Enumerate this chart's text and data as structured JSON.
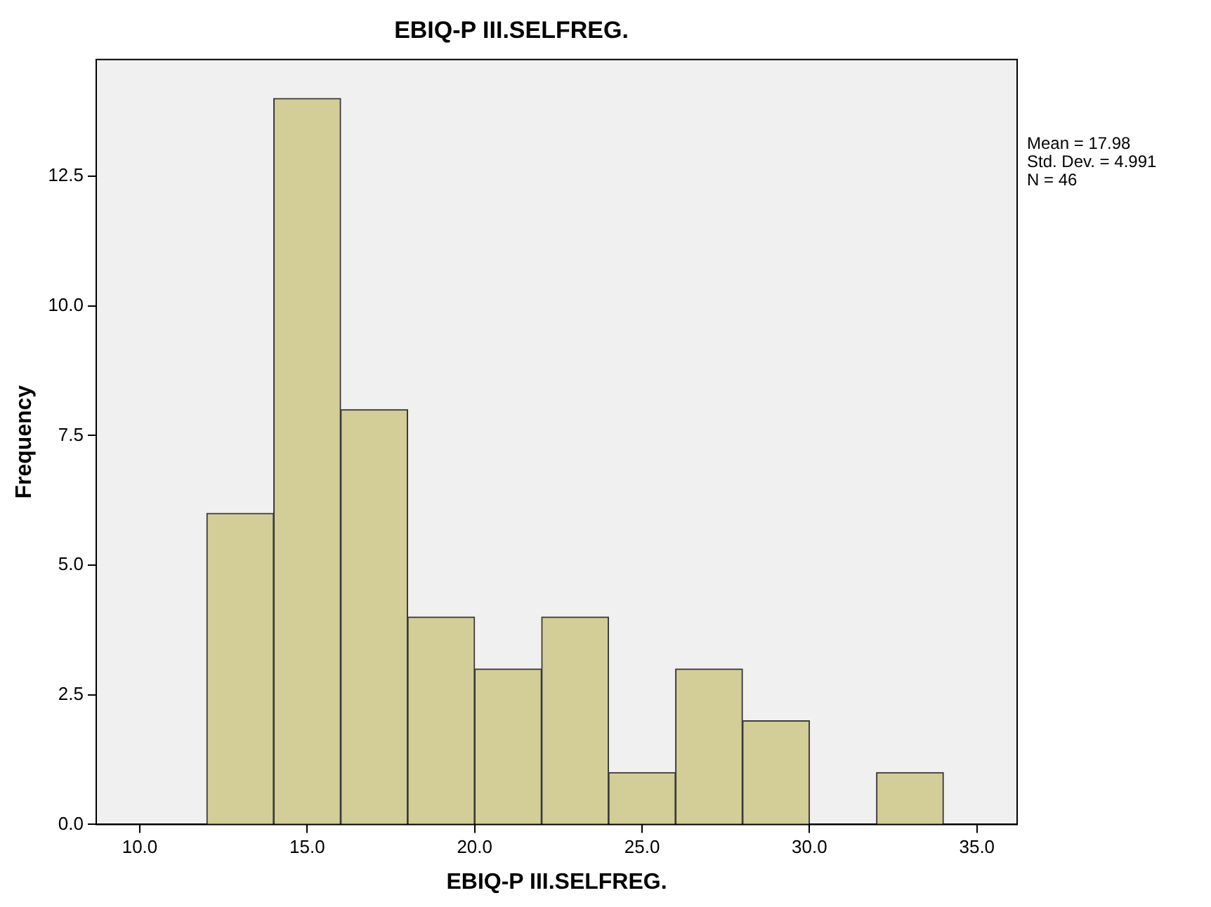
{
  "chart_data": {
    "type": "histogram",
    "title": "EBIQ-P III.SELFREG.",
    "xlabel": "EBIQ-P III.SELFREG.",
    "ylabel": "Frequency",
    "bins": [
      12,
      14,
      16,
      18,
      20,
      22,
      24,
      26,
      28,
      30,
      32,
      34
    ],
    "values": [
      6,
      14,
      8,
      4,
      3,
      4,
      1,
      3,
      2,
      0,
      1
    ],
    "color": "#d3ce97",
    "xlim": [
      8.7,
      36.2
    ],
    "xticks": [
      {
        "value": 10,
        "label": "10.0"
      },
      {
        "value": 15,
        "label": "15.0"
      },
      {
        "value": 20,
        "label": "20.0"
      },
      {
        "value": 25,
        "label": "25.0"
      },
      {
        "value": 30,
        "label": "30.0"
      },
      {
        "value": 35,
        "label": "35.0"
      }
    ],
    "ylim": [
      0,
      14.75
    ],
    "yticks": [
      {
        "value": 0,
        "label": "0.0"
      },
      {
        "value": 2.5,
        "label": "2.5"
      },
      {
        "value": 5,
        "label": "5.0"
      },
      {
        "value": 7.5,
        "label": "7.5"
      },
      {
        "value": 10,
        "label": "10.0"
      },
      {
        "value": 12.5,
        "label": "12.5"
      }
    ],
    "grid": false,
    "legend": false,
    "annotations": [
      "Mean = 17.98",
      "Std. Dev. = 4.991",
      "N = 46"
    ]
  }
}
